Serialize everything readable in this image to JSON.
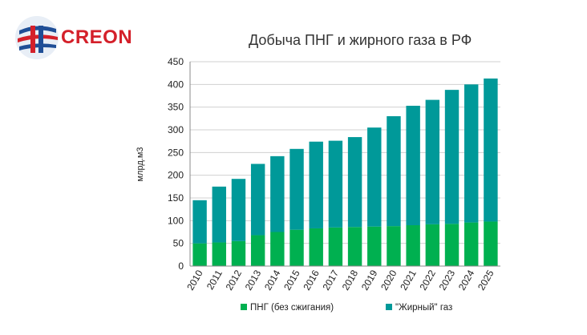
{
  "logo": {
    "text": "CREON"
  },
  "chart_data": {
    "type": "bar",
    "stacked": true,
    "title": "Добыча ПНГ и жирного газа в РФ",
    "xlabel": "",
    "ylabel": "млрд.м3",
    "ylim": [
      0,
      450
    ],
    "yticks": [
      0,
      50,
      100,
      150,
      200,
      250,
      300,
      350,
      400,
      450
    ],
    "grid": true,
    "legend_position": "bottom",
    "categories": [
      "2010",
      "2011",
      "2012",
      "2013",
      "2014",
      "2015",
      "2016",
      "2017",
      "2018",
      "2019",
      "2020",
      "2021",
      "2022",
      "2023",
      "2024",
      "2025"
    ],
    "series": [
      {
        "name": "ПНГ (без сжигания)",
        "color": "#00b050",
        "values": [
          50,
          52,
          55,
          68,
          75,
          80,
          83,
          85,
          86,
          87,
          88,
          90,
          92,
          93,
          96,
          98
        ]
      },
      {
        "name": "\"Жирный\" газ",
        "color": "#009999",
        "values": [
          95,
          123,
          137,
          157,
          167,
          178,
          191,
          191,
          198,
          218,
          242,
          263,
          274,
          295,
          304,
          315
        ]
      }
    ]
  }
}
